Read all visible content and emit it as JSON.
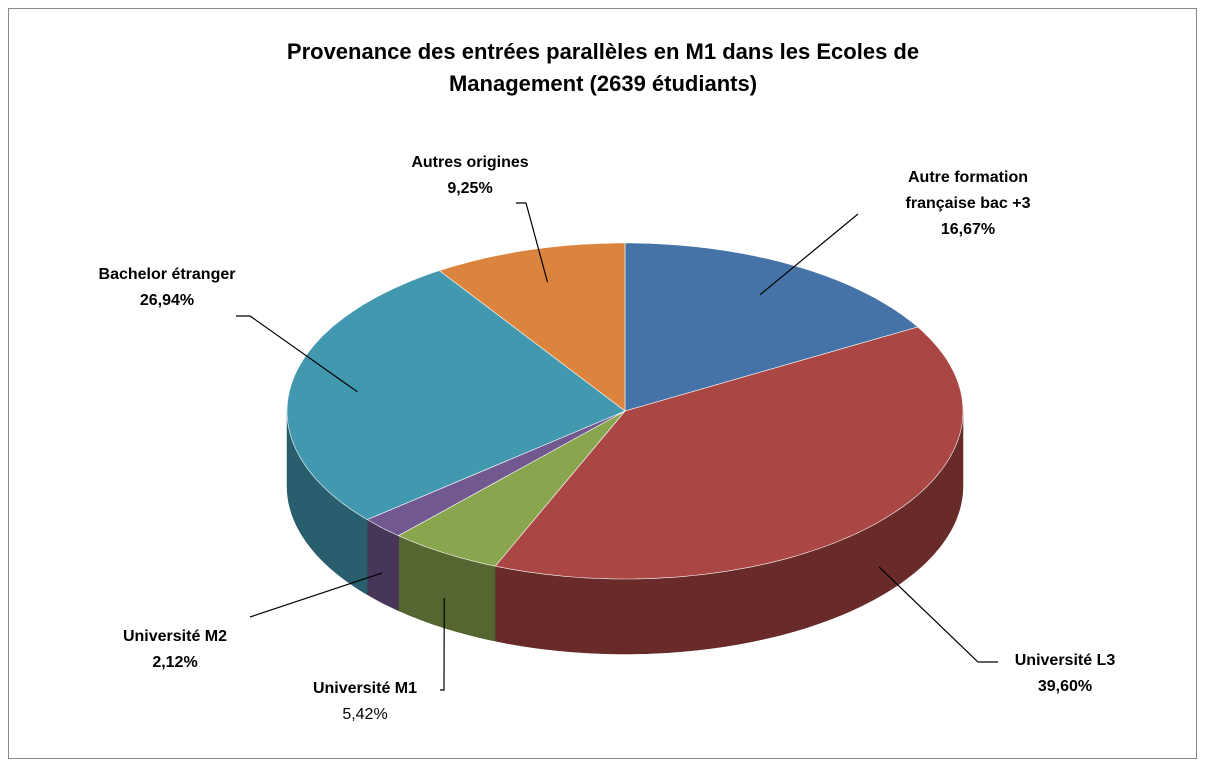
{
  "chart_data": {
    "type": "pie",
    "title": "Provenance des entrées parallèles en M1 dans les Ecoles de Management (2639 étudiants)",
    "categories": [
      "Autre formation française bac +3",
      "Université L3",
      "Université M1",
      "Université M2",
      "Bachelor étranger",
      "Autres origines"
    ],
    "values": [
      16.67,
      39.6,
      5.42,
      2.12,
      26.94,
      9.25
    ],
    "value_labels": [
      "16,67%",
      "39,60%",
      "5,42%",
      "2,12%",
      "26,94%",
      "9,25%"
    ],
    "colors": [
      "#4572a7",
      "#aa4643",
      "#89a54e",
      "#71588f",
      "#4198af",
      "#db843d"
    ]
  }
}
